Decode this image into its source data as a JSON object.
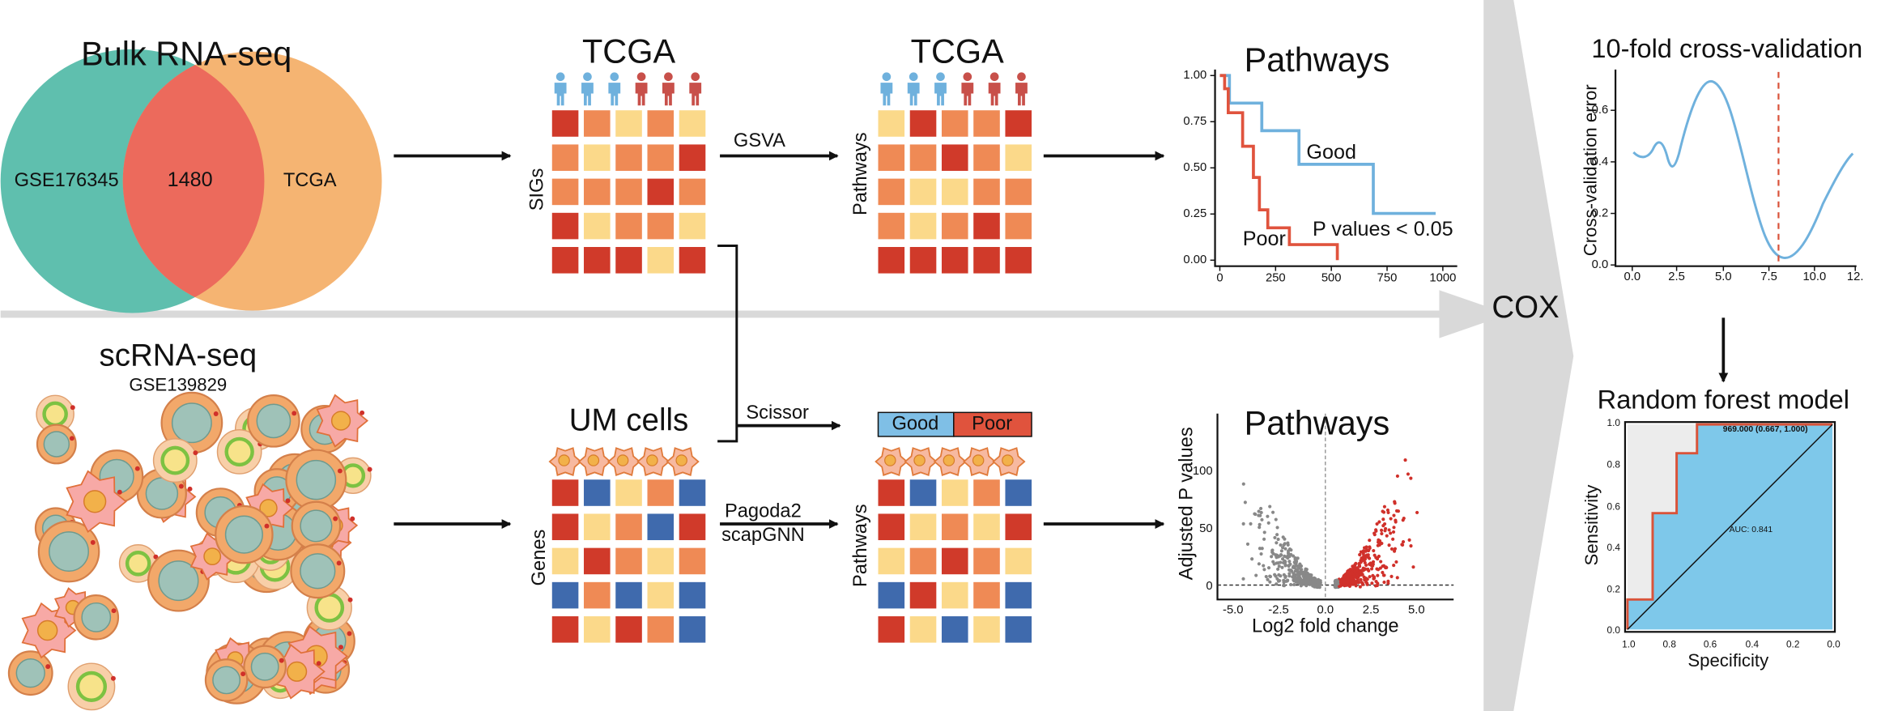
{
  "bulk": {
    "title": "Bulk RNA-seq",
    "left": "GSE176345",
    "overlap": "1480",
    "right": "TCGA"
  },
  "tcga1": {
    "title": "TCGA",
    "ylabel": "SIGs"
  },
  "gsva": "GSVA",
  "tcga2": {
    "title": "TCGA",
    "ylabel": "Pathways"
  },
  "km": {
    "title": "Pathways",
    "good": "Good",
    "poor": "Poor",
    "pvalue": "P values < 0.05",
    "yticks": [
      "1.00",
      "0.75",
      "0.50",
      "0.25",
      "0.00"
    ],
    "xticks": [
      "0",
      "250",
      "500",
      "750",
      "1000"
    ]
  },
  "cv": {
    "title": "10-fold cross-validation",
    "ylabel": "Cross-validation error",
    "yticks": [
      "0.6",
      "0.4",
      "0.2",
      "0.0"
    ],
    "xticks": [
      "0.0",
      "2.5",
      "5.0",
      "7.5",
      "10.0",
      "12."
    ]
  },
  "cox": "COX",
  "rf": {
    "title": "Random forest model",
    "ylabel": "Sensitivity",
    "xlabel": "Specificity",
    "point": "969.000 (0.667, 1.000)",
    "auc": "AUC: 0.841",
    "yticks": [
      "1.0",
      "0.8",
      "0.6",
      "0.4",
      "0.2",
      "0.0"
    ],
    "xticks": [
      "1.0",
      "0.8",
      "0.6",
      "0.4",
      "0.2",
      "0.0"
    ]
  },
  "sc": {
    "title": "scRNA-seq",
    "subtitle": "GSE139829"
  },
  "um": {
    "title": "UM cells",
    "ylabel": "Genes"
  },
  "scissor": "Scissor",
  "pagoda": "Pagoda2",
  "scapgnn": "scapGNN",
  "path2": {
    "ylabel": "Pathways",
    "good": "Good",
    "poor": "Poor"
  },
  "volcano": {
    "title": "Pathways",
    "ylabel": "Adjusted P values",
    "xlabel": "Log2 fold change",
    "yticks": [
      "100",
      "50",
      "0"
    ],
    "xticks": [
      "-5.0",
      "-2.5",
      "0.0",
      "2.5",
      "5.0"
    ]
  }
}
